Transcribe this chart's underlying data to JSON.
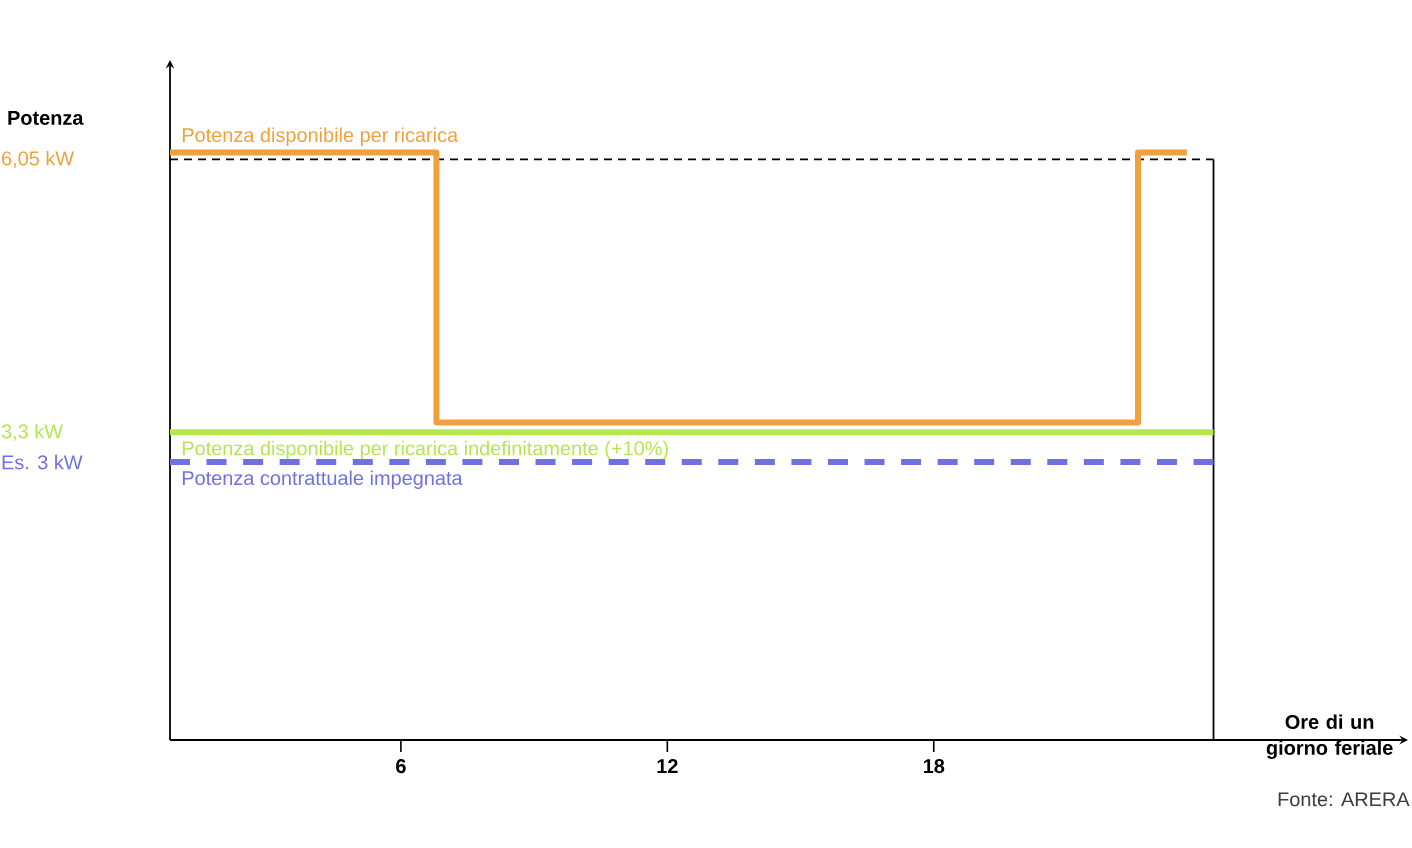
{
  "chart_data": {
    "type": "line",
    "ylabel": "Potenza",
    "xlabel": "Ore di un giorno feriale",
    "xlim": [
      0.8,
      28.5
    ],
    "xticks": [
      6,
      12,
      18
    ],
    "ylim": [
      0.2,
      6.85
    ],
    "yticks": [
      {
        "value": 3,
        "label": "Es. 3 kW"
      },
      {
        "value": 3.3,
        "label": "3,3 kW"
      },
      {
        "value": 6.05,
        "label": "6,05 kW"
      }
    ],
    "series": [
      {
        "name": "Potenza disponibile per ricarica",
        "type": "step",
        "color": "#f0a03c",
        "x": [
          0.8,
          6.8,
          22.6,
          23.7
        ],
        "values": [
          6.12,
          3.4,
          6.12,
          6.12
        ],
        "line_style": "solid"
      },
      {
        "name": "Potenza disponibile per ricarica indefinitamente (+10%)",
        "color": "#b4e650",
        "x": [
          0.8,
          24.3
        ],
        "values": [
          3.3,
          3.3
        ],
        "line_style": "solid"
      },
      {
        "name": "Potenza contrattuale impegnata",
        "color": "#7070e0",
        "x": [
          0.8,
          24.3
        ],
        "values": [
          3,
          3
        ],
        "line_style": "dashed"
      }
    ],
    "ref_lines": [
      {
        "axis": "y",
        "value": 6.05,
        "color": "#000000",
        "line_style": "dashed"
      },
      {
        "axis": "x",
        "value": 24.3,
        "color": "#000000",
        "line_style": "solid"
      }
    ],
    "annotations": [
      "Fonte: ARERA"
    ],
    "grid": false,
    "marker": "none"
  }
}
